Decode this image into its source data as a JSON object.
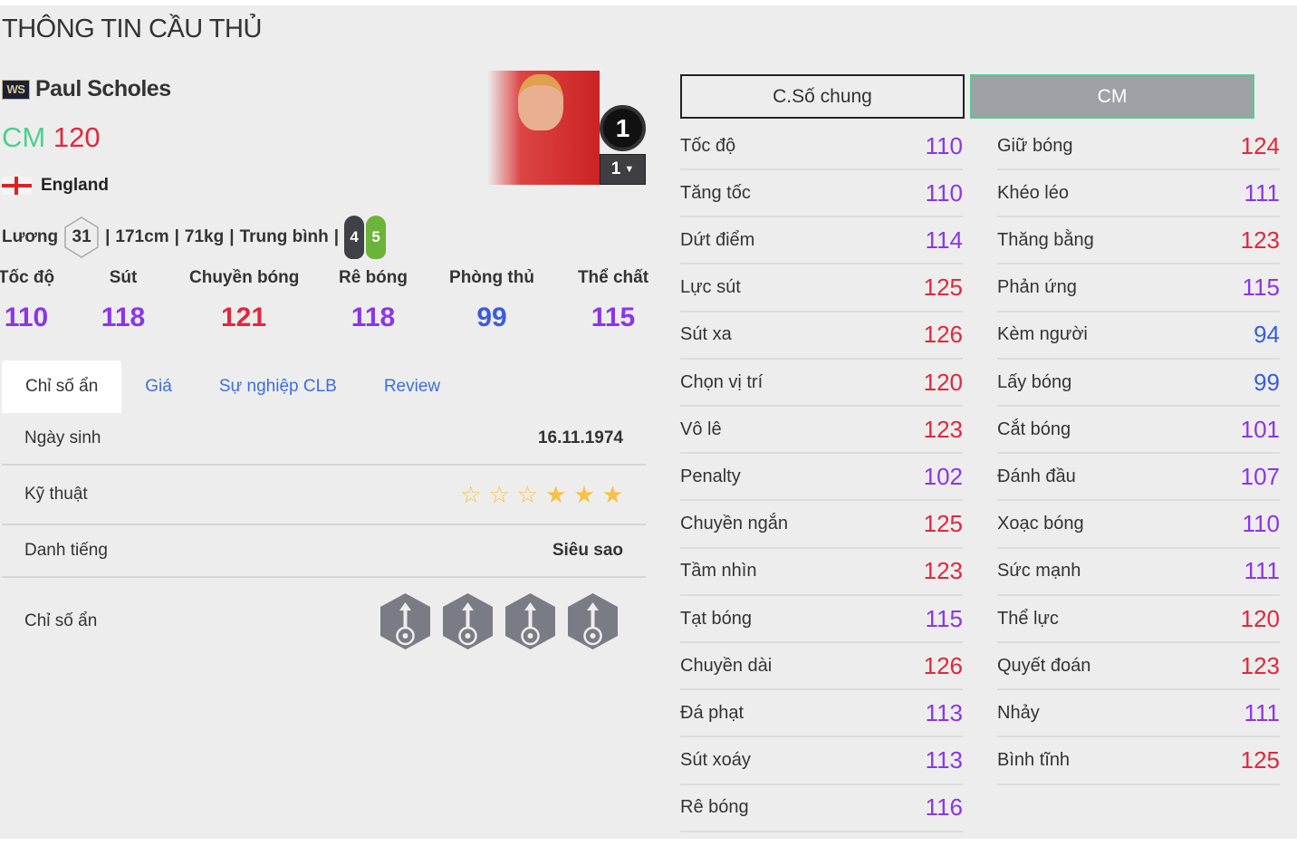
{
  "page_title": "THÔNG TIN CẦU THỦ",
  "player": {
    "season_badge": "WS",
    "name": "Paul Scholes",
    "position": "CM",
    "ovr": "120",
    "nation": "England",
    "salary_label": "Lương",
    "salary": "31",
    "height": "171cm",
    "weight": "71kg",
    "body": "Trung bình",
    "weak_foot_left": "4",
    "weak_foot_right": "5",
    "jersey": "1",
    "level": "1"
  },
  "colors": {
    "high": "#e0283c",
    "mid": "#8b35e8",
    "low": "#3b5bdb",
    "position": "#4cd08c"
  },
  "main_stats": [
    {
      "label": "Tốc độ",
      "value": 110
    },
    {
      "label": "Sút",
      "value": 118
    },
    {
      "label": "Chuyền bóng",
      "value": 121
    },
    {
      "label": "Rê bóng",
      "value": 118
    },
    {
      "label": "Phòng thủ",
      "value": 99
    },
    {
      "label": "Thể chất",
      "value": 115
    }
  ],
  "tabs": [
    "Chỉ số ẩn",
    "Giá",
    "Sự nghiệp CLB",
    "Review"
  ],
  "details": {
    "birth_label": "Ngày sinh",
    "birth": "16.11.1974",
    "skill_label": "Kỹ thuật",
    "skill_stars": 3,
    "skill_max": 6,
    "fame_label": "Danh tiếng",
    "fame": "Siêu sao",
    "hidden_label": "Chỉ số ẩn",
    "hidden_icons": [
      "long-shot-taker-icon",
      "outside-foot-icon",
      "power-header-icon",
      "chip-shot-icon"
    ]
  },
  "buttons": {
    "general": "C.Số chung",
    "position": "CM"
  },
  "stats_left": [
    {
      "label": "Tốc độ",
      "value": 110
    },
    {
      "label": "Tăng tốc",
      "value": 110
    },
    {
      "label": "Dứt điểm",
      "value": 114
    },
    {
      "label": "Lực sút",
      "value": 125
    },
    {
      "label": "Sút xa",
      "value": 126
    },
    {
      "label": "Chọn vị trí",
      "value": 120
    },
    {
      "label": "Vô lê",
      "value": 123
    },
    {
      "label": "Penalty",
      "value": 102
    },
    {
      "label": "Chuyền ngắn",
      "value": 125
    },
    {
      "label": "Tầm nhìn",
      "value": 123
    },
    {
      "label": "Tạt bóng",
      "value": 115
    },
    {
      "label": "Chuyền dài",
      "value": 126
    },
    {
      "label": "Đá phạt",
      "value": 113
    },
    {
      "label": "Sút xoáy",
      "value": 113
    },
    {
      "label": "Rê bóng",
      "value": 116
    }
  ],
  "stats_right": [
    {
      "label": "Giữ bóng",
      "value": 124
    },
    {
      "label": "Khéo léo",
      "value": 111
    },
    {
      "label": "Thăng bằng",
      "value": 123
    },
    {
      "label": "Phản ứng",
      "value": 115
    },
    {
      "label": "Kèm người",
      "value": 94
    },
    {
      "label": "Lấy bóng",
      "value": 99
    },
    {
      "label": "Cắt bóng",
      "value": 101
    },
    {
      "label": "Đánh đầu",
      "value": 107
    },
    {
      "label": "Xoạc bóng",
      "value": 110
    },
    {
      "label": "Sức mạnh",
      "value": 111
    },
    {
      "label": "Thể lực",
      "value": 120
    },
    {
      "label": "Quyết đoán",
      "value": 123
    },
    {
      "label": "Nhảy",
      "value": 111
    },
    {
      "label": "Bình tĩnh",
      "value": 125
    }
  ]
}
